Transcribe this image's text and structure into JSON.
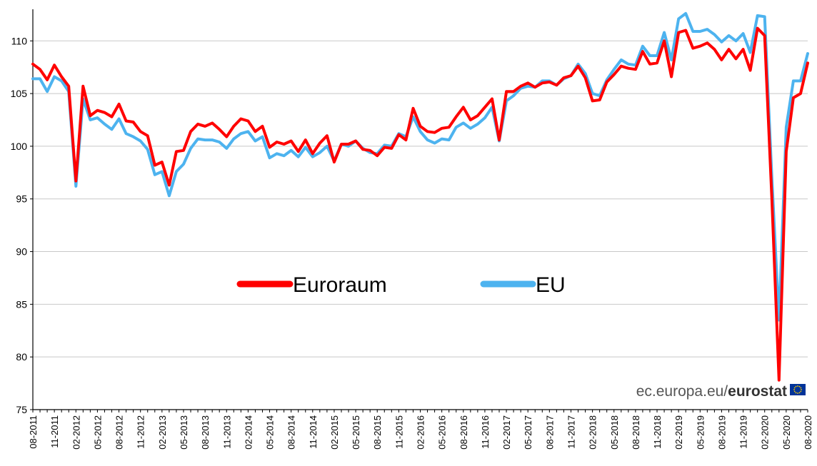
{
  "chart_data": {
    "type": "line",
    "title": "",
    "xlabel": "",
    "ylabel": "",
    "ylim": [
      75,
      113
    ],
    "yticks": [
      75,
      80,
      85,
      90,
      95,
      100,
      105,
      110
    ],
    "x_tick_labels": [
      "08-2011",
      "11-2011",
      "02-2012",
      "05-2012",
      "08-2012",
      "11-2012",
      "02-2013",
      "05-2013",
      "08-2013",
      "11-2013",
      "02-2014",
      "05-2014",
      "08-2014",
      "11-2014",
      "02-2015",
      "05-2015",
      "08-2015",
      "11-2015",
      "02-2016",
      "05-2016",
      "08-2016",
      "11-2016",
      "02-2017",
      "05-2017",
      "08-2017",
      "11-2017",
      "02-2018",
      "05-2018",
      "08-2018",
      "11-2018",
      "02-2019",
      "05-2019",
      "08-2019",
      "11-2019",
      "02-2020",
      "05-2020",
      "08-2020"
    ],
    "x_start": "08-2011",
    "x_end": "08-2020",
    "grid": "horizontal",
    "legend_position": "center",
    "series": [
      {
        "name": "Euroraum",
        "color": "#ff0000",
        "values": [
          107.8,
          107.3,
          106.3,
          107.7,
          106.6,
          105.7,
          96.7,
          105.7,
          102.9,
          103.4,
          103.2,
          102.8,
          104.0,
          102.4,
          102.3,
          101.4,
          101.0,
          98.2,
          98.5,
          96.3,
          99.5,
          99.6,
          101.4,
          102.1,
          101.9,
          102.2,
          101.6,
          100.9,
          101.9,
          102.6,
          102.4,
          101.4,
          101.9,
          99.9,
          100.4,
          100.2,
          100.5,
          99.5,
          100.6,
          99.3,
          100.3,
          101.0,
          98.5,
          100.2,
          100.2,
          100.5,
          99.7,
          99.6,
          99.1,
          99.9,
          99.8,
          101.1,
          100.6,
          103.6,
          101.9,
          101.4,
          101.3,
          101.7,
          101.8,
          102.8,
          103.7,
          102.5,
          102.9,
          103.7,
          104.5,
          100.6,
          105.2,
          105.2,
          105.7,
          106.0,
          105.6,
          106.0,
          106.1,
          105.8,
          106.5,
          106.7,
          107.6,
          106.5,
          104.3,
          104.4,
          106.1,
          106.8,
          107.6,
          107.4,
          107.3,
          109.0,
          107.8,
          107.9,
          110.0,
          106.6,
          110.8,
          111.0,
          109.3,
          109.5,
          109.8,
          109.2,
          108.2,
          109.2,
          108.3,
          109.2,
          107.2,
          111.2,
          110.5,
          95.0,
          77.8,
          99.5,
          104.6,
          105.0,
          107.9
        ]
      },
      {
        "name": "EU",
        "color": "#4db3ef",
        "values": [
          106.4,
          106.4,
          105.2,
          106.6,
          106.2,
          105.2,
          96.2,
          104.5,
          102.5,
          102.7,
          102.1,
          101.6,
          102.6,
          101.2,
          100.9,
          100.5,
          99.7,
          97.3,
          97.6,
          95.3,
          97.6,
          98.3,
          99.8,
          100.7,
          100.6,
          100.6,
          100.4,
          99.8,
          100.7,
          101.2,
          101.4,
          100.5,
          100.9,
          98.9,
          99.3,
          99.1,
          99.6,
          99.0,
          99.9,
          99.0,
          99.4,
          100.0,
          98.6,
          100.2,
          100.0,
          100.5,
          99.8,
          99.4,
          99.3,
          100.1,
          100.0,
          101.2,
          100.9,
          102.8,
          101.4,
          100.6,
          100.3,
          100.7,
          100.6,
          101.8,
          102.2,
          101.7,
          102.1,
          102.7,
          103.7,
          100.5,
          104.3,
          104.8,
          105.5,
          105.7,
          105.6,
          106.2,
          106.2,
          105.8,
          106.4,
          106.7,
          107.8,
          106.9,
          105.0,
          104.8,
          106.3,
          107.3,
          108.2,
          107.8,
          107.7,
          109.5,
          108.6,
          108.6,
          110.8,
          108.2,
          112.1,
          112.6,
          110.9,
          110.9,
          111.1,
          110.6,
          109.9,
          110.5,
          110.0,
          110.7,
          108.9,
          112.4,
          112.3,
          97.0,
          83.5,
          101.8,
          106.2,
          106.2,
          108.8
        ]
      }
    ]
  },
  "legend": [
    {
      "label": "Euroraum",
      "color": "#ff0000"
    },
    {
      "label": "EU",
      "color": "#4db3ef"
    }
  ],
  "source": {
    "prefix": "ec.europa.eu/",
    "brand": "eurostat",
    "flag_icon": "eu-flag-icon"
  }
}
